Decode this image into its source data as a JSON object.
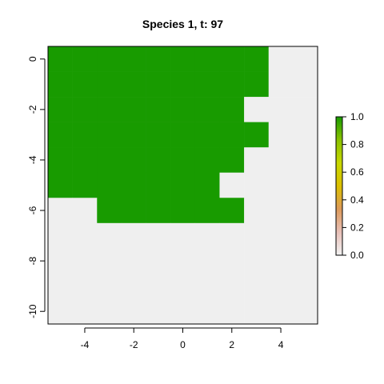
{
  "chart_data": {
    "type": "heatmap",
    "title": "Species 1, t: 97",
    "xlabel": "",
    "ylabel": "",
    "xlim": [
      -5.5,
      5.5
    ],
    "ylim": [
      -10.5,
      0.5
    ],
    "x_ticks": [
      -4,
      -2,
      0,
      2,
      4
    ],
    "y_ticks": [
      0,
      -2,
      -4,
      -6,
      -8,
      -10
    ],
    "x_tick_labels": [
      "-4",
      "-2",
      "0",
      "2",
      "4"
    ],
    "y_tick_labels": [
      "0",
      "-2",
      "-4",
      "-6",
      "-8",
      "-10"
    ],
    "x_centers": [
      -5,
      -4,
      -3,
      -2,
      -1,
      0,
      1,
      2,
      3,
      4,
      5
    ],
    "y_centers": [
      0,
      -1,
      -2,
      -3,
      -4,
      -5,
      -6,
      -7,
      -8,
      -9,
      -10
    ],
    "grid": false,
    "values": [
      [
        1,
        1,
        1,
        1,
        1,
        1,
        1,
        1,
        1,
        0,
        0
      ],
      [
        1,
        1,
        1,
        1,
        1,
        1,
        1,
        1,
        1,
        0,
        0
      ],
      [
        1,
        1,
        1,
        1,
        1,
        1,
        1,
        1,
        0,
        0,
        0
      ],
      [
        1,
        1,
        1,
        1,
        1,
        1,
        1,
        1,
        1,
        0,
        0
      ],
      [
        1,
        1,
        1,
        1,
        1,
        1,
        1,
        1,
        0,
        0,
        0
      ],
      [
        1,
        1,
        1,
        1,
        1,
        1,
        1,
        0,
        0,
        0,
        0
      ],
      [
        0,
        0,
        1,
        1,
        1,
        1,
        1,
        1,
        0,
        0,
        0
      ],
      [
        0,
        0,
        0,
        0,
        0,
        0,
        0,
        0,
        0,
        0,
        0
      ],
      [
        0,
        0,
        0,
        0,
        0,
        0,
        0,
        0,
        0,
        0,
        0
      ],
      [
        0,
        0,
        0,
        0,
        0,
        0,
        0,
        0,
        0,
        0,
        0
      ],
      [
        0,
        0,
        0,
        0,
        0,
        0,
        0,
        0,
        0,
        0,
        0
      ]
    ],
    "colors": {
      "zero": "#efefef",
      "one": "#189b00"
    },
    "legend": {
      "position": "right",
      "range": [
        0,
        1
      ],
      "ticks": [
        0.0,
        0.2,
        0.4,
        0.6,
        0.8,
        1.0
      ],
      "tick_labels": [
        "0.0",
        "0.2",
        "0.4",
        "0.6",
        "0.8",
        "1.0"
      ],
      "gradient": [
        "#f2f2f2",
        "#e8c0b8",
        "#dd9a5a",
        "#dcc000",
        "#c8d800",
        "#8ac200",
        "#189b00"
      ]
    }
  }
}
